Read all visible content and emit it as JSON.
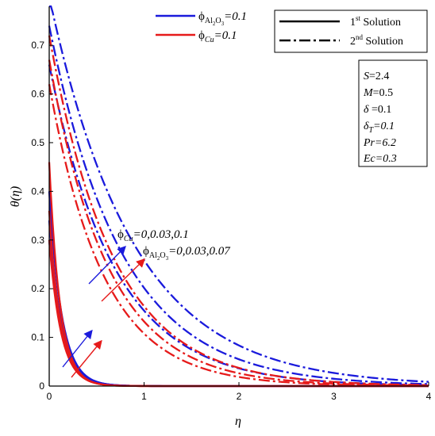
{
  "chart_data": {
    "type": "line",
    "xlabel": "η",
    "ylabel": "θ(η)",
    "xlim": [
      0,
      4
    ],
    "ylim": [
      0,
      0.78
    ],
    "x_ticks": [
      "0",
      "1",
      "2",
      "3",
      "4"
    ],
    "y_ticks": [
      "0",
      "0.1",
      "0.2",
      "0.3",
      "0.4",
      "0.5",
      "0.6",
      "0.7"
    ],
    "grid": false,
    "legend_nanofluid": [
      {
        "symbol": "ϕ",
        "sub": "Al",
        "sub2": "2",
        "sub3": "O",
        "sub4": "3",
        "value": "=0.1",
        "color": "#1a1adc"
      },
      {
        "symbol": "ϕ",
        "sub": "Cu",
        "value": "=0.1",
        "color": "#e61a1a"
      }
    ],
    "legend_solutions": [
      {
        "pre": "1",
        "sup": "st",
        "post": " Solution",
        "style": "solid"
      },
      {
        "pre": "2",
        "sup": "nd",
        "post": " Solution",
        "style": "dashdot"
      }
    ],
    "params": [
      "S=2.4",
      "M=0.5",
      "δ =0.1",
      "δT=0.1",
      "Pr=6.2",
      "Ec=0.3"
    ],
    "params_parts": [
      {
        "a": "S",
        "b": "=2.4"
      },
      {
        "a": "M",
        "b": "=0.5"
      },
      {
        "a": "δ",
        "b": " =0.1"
      },
      {
        "a": "δ",
        "sub": "T",
        "b": "=0.1"
      },
      {
        "a": "Pr",
        "b": "=6.2"
      },
      {
        "a": "Ec",
        "b": "=0.3"
      }
    ],
    "annotation_cu": {
      "symbol": "ϕ",
      "sub": "Cu",
      "text": "=0,0.03,0.1"
    },
    "annotation_al": {
      "symbol": "ϕ",
      "sub": "Al",
      "sub2": "2",
      "sub3": "O",
      "sub4": "3",
      "text": "=0,0.03,0.07"
    },
    "colors": {
      "blue": "#1a1adc",
      "red": "#e61a1a"
    },
    "series": [
      {
        "group": "Al2O3",
        "solution": "first",
        "phi": 0,
        "color": "#1a1adc",
        "theta0": 0.3,
        "decay": 7.2
      },
      {
        "group": "Al2O3",
        "solution": "first",
        "phi": 0.03,
        "color": "#1a1adc",
        "theta0": 0.34,
        "decay": 7.4
      },
      {
        "group": "Al2O3",
        "solution": "first",
        "phi": 0.07,
        "color": "#1a1adc",
        "theta0": 0.4,
        "decay": 7.6
      },
      {
        "group": "Cu",
        "solution": "first",
        "phi": 0,
        "color": "#e61a1a",
        "theta0": 0.3,
        "decay": 8.0
      },
      {
        "group": "Cu",
        "solution": "first",
        "phi": 0.03,
        "color": "#e61a1a",
        "theta0": 0.36,
        "decay": 8.4
      },
      {
        "group": "Cu",
        "solution": "first",
        "phi": 0.1,
        "color": "#e61a1a",
        "theta0": 0.46,
        "decay": 8.8
      },
      {
        "group": "Al2O3",
        "solution": "second",
        "phi": 0,
        "color": "#1a1adc",
        "theta0": 0.66,
        "decay": 1.45
      },
      {
        "group": "Al2O3",
        "solution": "second",
        "phi": 0.03,
        "color": "#1a1adc",
        "theta0": 0.74,
        "decay": 1.3
      },
      {
        "group": "Al2O3",
        "solution": "second",
        "phi": 0.07,
        "color": "#1a1adc",
        "theta0": 0.8,
        "decay": 1.13
      },
      {
        "group": "Cu",
        "solution": "second",
        "phi": 0,
        "color": "#e61a1a",
        "theta0": 0.62,
        "decay": 1.75
      },
      {
        "group": "Cu",
        "solution": "second",
        "phi": 0.03,
        "color": "#e61a1a",
        "theta0": 0.67,
        "decay": 1.62
      },
      {
        "group": "Cu",
        "solution": "second",
        "phi": 0.1,
        "color": "#e61a1a",
        "theta0": 0.72,
        "decay": 1.48
      }
    ]
  }
}
